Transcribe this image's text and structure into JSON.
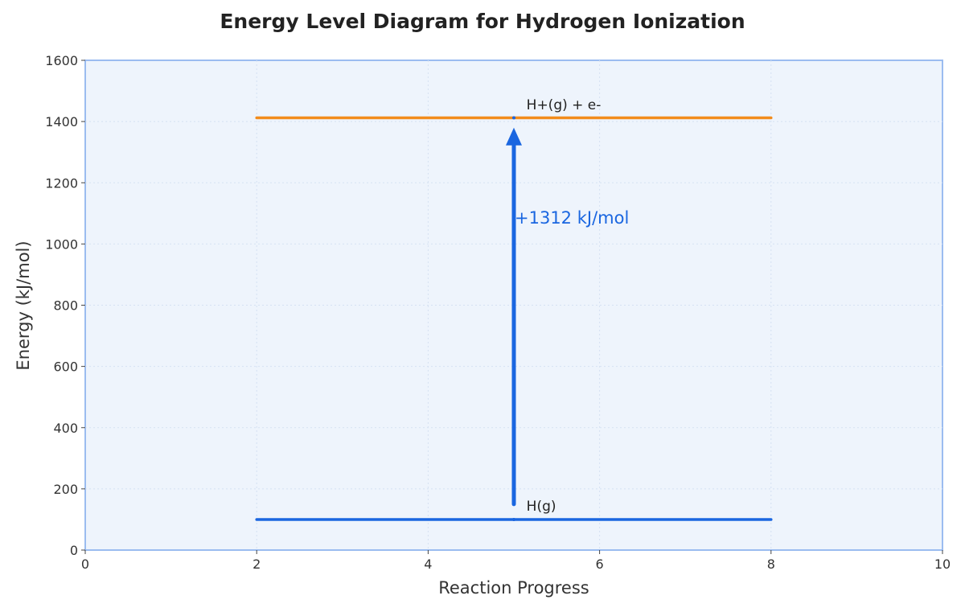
{
  "chart_data": {
    "type": "line",
    "title": "Energy Level Diagram for Hydrogen Ionization",
    "xlabel": "Reaction Progress",
    "ylabel": "Energy (kJ/mol)",
    "xlim": [
      0,
      10
    ],
    "ylim": [
      0,
      1600
    ],
    "xticks": [
      0,
      2,
      4,
      6,
      8,
      10
    ],
    "yticks": [
      0,
      200,
      400,
      600,
      800,
      1000,
      1200,
      1400,
      1600
    ],
    "grid": true,
    "series": [
      {
        "name": "H(g)",
        "x": [
          2,
          8
        ],
        "y": [
          100,
          100
        ],
        "color": "#1a66e0"
      },
      {
        "name": "H+(g) + e-",
        "x": [
          2,
          8
        ],
        "y": [
          1412,
          1412
        ],
        "color": "#f28c1c"
      }
    ],
    "annotations": [
      {
        "type": "arrow",
        "x": 5,
        "y_start": 150,
        "y_end": 1380,
        "color": "#1a66e0"
      },
      {
        "type": "text",
        "text": "+1312 kJ/mol",
        "x": 5,
        "y": 1085,
        "color": "#1a66e0"
      },
      {
        "type": "level-label",
        "text": "H(g)",
        "x": 5.1,
        "y": 145
      },
      {
        "type": "level-label",
        "text": "H+(g) + e-",
        "x": 5.1,
        "y": 1455
      }
    ],
    "colors": {
      "plot_background": "#eef4fc",
      "plot_border": "#9bbcf0",
      "grid": "#d5e1f2",
      "axis_text": "#333333"
    }
  }
}
